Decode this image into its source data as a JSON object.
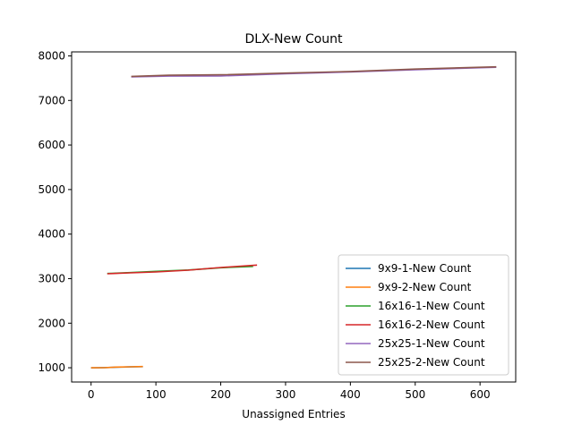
{
  "chart_data": {
    "type": "line",
    "title": "DLX-New Count",
    "xlabel": "Unassigned Entries",
    "ylabel": "",
    "xlim": [
      -30,
      655
    ],
    "ylim": [
      680,
      8090
    ],
    "xticks": [
      0,
      100,
      200,
      300,
      400,
      500,
      600
    ],
    "yticks": [
      1000,
      2000,
      3000,
      4000,
      5000,
      6000,
      7000,
      8000
    ],
    "grid": false,
    "legend_position": "lower-right",
    "series": [
      {
        "name": "9x9-1-New Count",
        "color": "#1f77b4",
        "x": [
          0,
          20,
          40,
          60,
          80
        ],
        "y": [
          998,
          1003,
          1012,
          1020,
          1025
        ]
      },
      {
        "name": "9x9-2-New Count",
        "color": "#ff7f0e",
        "x": [
          0,
          20,
          40,
          60,
          80
        ],
        "y": [
          1000,
          1002,
          1015,
          1022,
          1028
        ]
      },
      {
        "name": "16x16-1-New Count",
        "color": "#2ca02c",
        "x": [
          25,
          60,
          100,
          150,
          200,
          250
        ],
        "y": [
          3115,
          3135,
          3165,
          3195,
          3245,
          3275
        ]
      },
      {
        "name": "16x16-2-New Count",
        "color": "#d62728",
        "x": [
          25,
          60,
          100,
          150,
          200,
          256
        ],
        "y": [
          3110,
          3130,
          3150,
          3190,
          3250,
          3305
        ]
      },
      {
        "name": "25x25-1-New Count",
        "color": "#9467bd",
        "x": [
          62,
          120,
          200,
          300,
          400,
          500,
          625
        ],
        "y": [
          7530,
          7545,
          7550,
          7600,
          7640,
          7690,
          7745
        ]
      },
      {
        "name": "25x25-2-New Count",
        "color": "#8c564b",
        "x": [
          62,
          120,
          200,
          300,
          400,
          500,
          625
        ],
        "y": [
          7540,
          7565,
          7575,
          7615,
          7650,
          7705,
          7755
        ]
      }
    ]
  }
}
